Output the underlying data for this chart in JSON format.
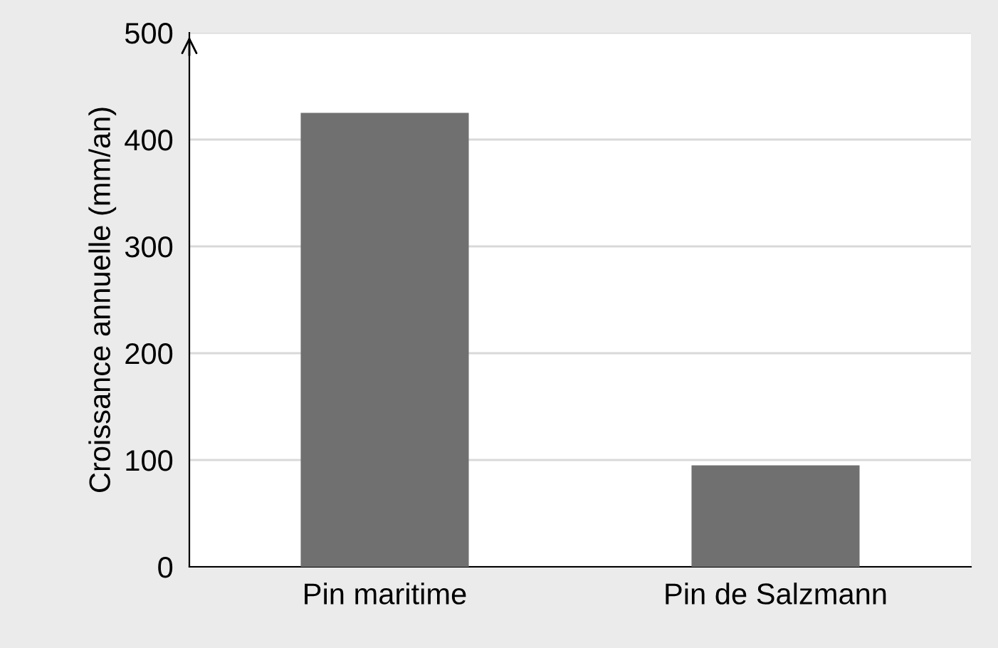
{
  "chart_data": {
    "type": "bar",
    "ylabel": "Croissance annuelle (mm/an)",
    "categories": [
      "Pin maritime",
      "Pin de Salzmann"
    ],
    "values": [
      425,
      95
    ],
    "color": "#707070",
    "ylim": [
      0,
      500
    ],
    "yticks": [
      0,
      100,
      200,
      300,
      400,
      500
    ],
    "grid": "y"
  }
}
